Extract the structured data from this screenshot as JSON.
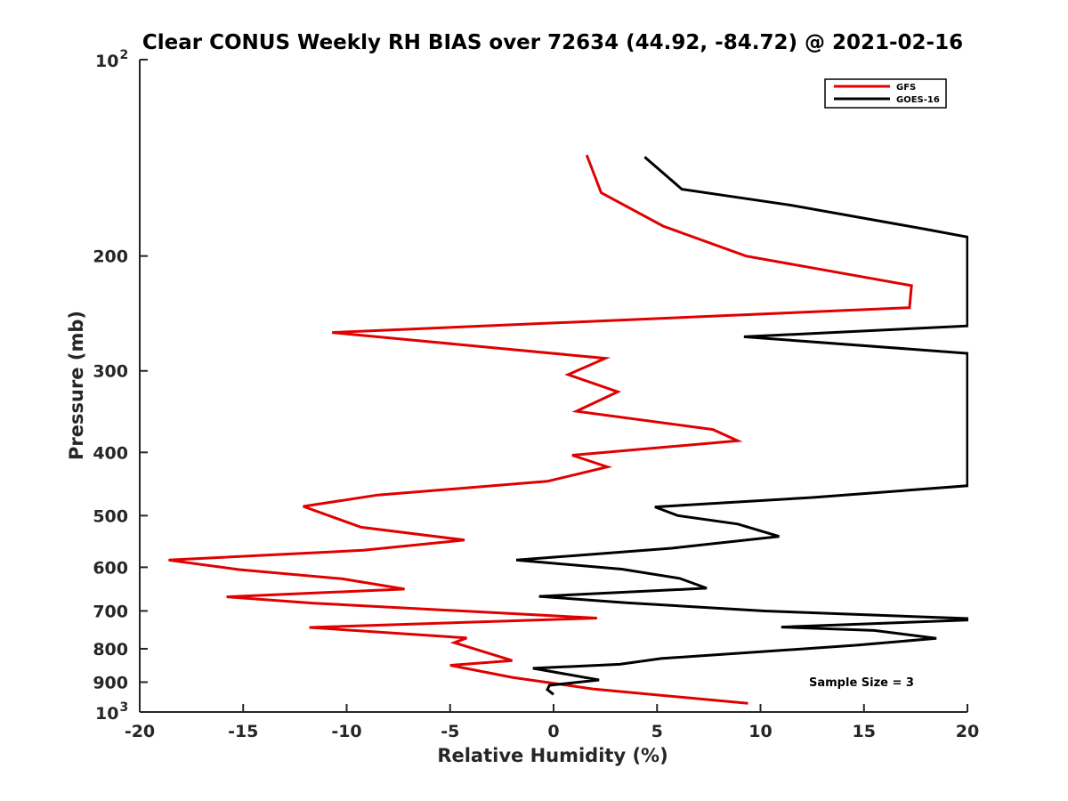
{
  "chart_data": {
    "type": "line",
    "title": "Clear CONUS Weekly RH BIAS over 72634 (44.92, -84.72) @ 2021-02-16",
    "xlabel": "Relative Humidity (%)",
    "ylabel": "Pressure (mb)",
    "xlim": [
      -20,
      20
    ],
    "ylim": [
      100,
      1000
    ],
    "yscale": "log",
    "y_reversed": true,
    "x_ticks": [
      "-20",
      "-15",
      "-10",
      "-5",
      "0",
      "5",
      "10",
      "15",
      "20"
    ],
    "y_ticks": [
      {
        "value": 100,
        "base": "10",
        "exp": "2"
      },
      {
        "value": 200,
        "label": "200"
      },
      {
        "value": 300,
        "label": "300"
      },
      {
        "value": 400,
        "label": "400"
      },
      {
        "value": 500,
        "label": "500"
      },
      {
        "value": 600,
        "label": "600"
      },
      {
        "value": 700,
        "label": "700"
      },
      {
        "value": 800,
        "label": "800"
      },
      {
        "value": 900,
        "label": "900"
      },
      {
        "value": 1000,
        "base": "10",
        "exp": "3"
      }
    ],
    "legend_position": "top-right",
    "annotation": "Sample Size = 3",
    "series": [
      {
        "name": "GFS",
        "color": "#e00000",
        "points": [
          [
            1.6,
            140
          ],
          [
            2.3,
            160
          ],
          [
            5.3,
            180
          ],
          [
            9.3,
            200
          ],
          [
            17.3,
            222
          ],
          [
            17.2,
            240
          ],
          [
            -10.7,
            262
          ],
          [
            2.5,
            287
          ],
          [
            0.7,
            304
          ],
          [
            3.1,
            323
          ],
          [
            1.1,
            346
          ],
          [
            7.7,
            369
          ],
          [
            8.9,
            384
          ],
          [
            0.9,
            404
          ],
          [
            2.6,
            421
          ],
          [
            -0.3,
            443
          ],
          [
            -8.5,
            465
          ],
          [
            -12.1,
            484
          ],
          [
            -9.3,
            521
          ],
          [
            -4.3,
            545
          ],
          [
            -9.2,
            565
          ],
          [
            -18.6,
            585
          ],
          [
            -15.2,
            605
          ],
          [
            -10.2,
            625
          ],
          [
            -7.2,
            648
          ],
          [
            -15.8,
            666
          ],
          [
            -11.6,
            681
          ],
          [
            2.1,
            718
          ],
          [
            -11.8,
            742
          ],
          [
            -4.2,
            770
          ],
          [
            -4.8,
            783
          ],
          [
            -2.0,
            834
          ],
          [
            -5.0,
            848
          ],
          [
            -2.0,
            885
          ],
          [
            1.9,
            922
          ],
          [
            9.4,
            970
          ]
        ]
      },
      {
        "name": "GOES-16",
        "color": "#000000",
        "points": [
          [
            4.4,
            141
          ],
          [
            6.2,
            158
          ],
          [
            11.4,
            167
          ],
          [
            18.0,
            182
          ],
          [
            20.0,
            187
          ],
          [
            20.0,
            256
          ],
          [
            9.2,
            266
          ],
          [
            20.0,
            282
          ],
          [
            20.0,
            450
          ],
          [
            12.5,
            469
          ],
          [
            4.9,
            485
          ],
          [
            6.0,
            500
          ],
          [
            8.9,
            515
          ],
          [
            10.9,
            538
          ],
          [
            5.7,
            561
          ],
          [
            -1.8,
            585
          ],
          [
            3.3,
            604
          ],
          [
            6.1,
            624
          ],
          [
            7.4,
            646
          ],
          [
            -0.7,
            665
          ],
          [
            3.5,
            680
          ],
          [
            10.2,
            700
          ],
          [
            20.0,
            719
          ],
          [
            20.0,
            723
          ],
          [
            11.0,
            741
          ],
          [
            15.5,
            750
          ],
          [
            18.5,
            771
          ],
          [
            14.6,
            790
          ],
          [
            5.2,
            828
          ],
          [
            3.2,
            845
          ],
          [
            -1.0,
            857
          ],
          [
            2.2,
            893
          ],
          [
            -0.2,
            910
          ],
          [
            -0.3,
            924
          ],
          [
            0.0,
            940
          ]
        ]
      }
    ]
  }
}
